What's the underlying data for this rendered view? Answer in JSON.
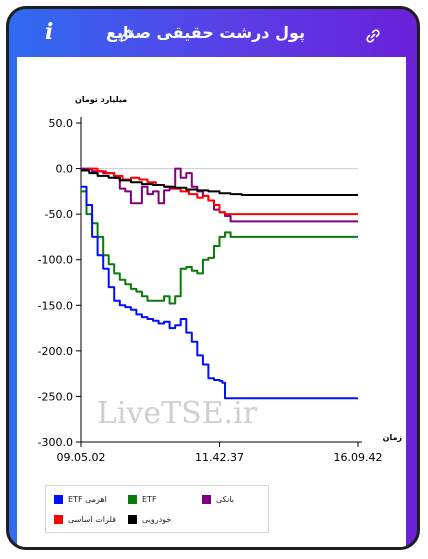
{
  "header": {
    "title": "پول درشت حقیقی صنایع",
    "info_glyph": "i"
  },
  "watermark": "LiveTSE.ir",
  "chart_data": {
    "type": "line",
    "ylabel": "میلیارد تومان",
    "xlabel": "زمان",
    "ylim": [
      -300,
      50
    ],
    "yticks": [
      "50.0",
      "0.0",
      "-50.0",
      "-100.0",
      "-150.0",
      "-200.0",
      "-250.0",
      "-300.0"
    ],
    "xtick_labels": [
      "09.05.02",
      "11.42.37",
      "16.09.42"
    ],
    "x_axis_note": "time of day; x values as fraction of the session from 09.05.02 (0) to 16.09.42 (1)",
    "zero_line": true,
    "grid": false,
    "legend_position": "bottom-left",
    "series": [
      {
        "name": "ETF اهرمی",
        "color": "#0010ff",
        "points": [
          [
            0,
            -20
          ],
          [
            0.02,
            -40
          ],
          [
            0.04,
            -75
          ],
          [
            0.06,
            -95
          ],
          [
            0.08,
            -110
          ],
          [
            0.1,
            -130
          ],
          [
            0.12,
            -145
          ],
          [
            0.14,
            -150
          ],
          [
            0.16,
            -152
          ],
          [
            0.18,
            -155
          ],
          [
            0.2,
            -160
          ],
          [
            0.22,
            -163
          ],
          [
            0.24,
            -165
          ],
          [
            0.26,
            -167
          ],
          [
            0.28,
            -170
          ],
          [
            0.3,
            -168
          ],
          [
            0.32,
            -175
          ],
          [
            0.34,
            -172
          ],
          [
            0.36,
            -165
          ],
          [
            0.38,
            -180
          ],
          [
            0.4,
            -190
          ],
          [
            0.42,
            -205
          ],
          [
            0.44,
            -215
          ],
          [
            0.46,
            -230
          ],
          [
            0.48,
            -232
          ],
          [
            0.5,
            -233
          ],
          [
            0.51,
            -235
          ],
          [
            0.52,
            -252
          ],
          [
            1,
            -252
          ]
        ]
      },
      {
        "name": "ETF",
        "color": "#0a7a0a",
        "points": [
          [
            0,
            -25
          ],
          [
            0.02,
            -50
          ],
          [
            0.04,
            -60
          ],
          [
            0.06,
            -75
          ],
          [
            0.08,
            -95
          ],
          [
            0.1,
            -105
          ],
          [
            0.12,
            -115
          ],
          [
            0.14,
            -122
          ],
          [
            0.16,
            -127
          ],
          [
            0.18,
            -132
          ],
          [
            0.2,
            -135
          ],
          [
            0.22,
            -140
          ],
          [
            0.24,
            -145
          ],
          [
            0.26,
            -145
          ],
          [
            0.28,
            -145
          ],
          [
            0.3,
            -140
          ],
          [
            0.32,
            -148
          ],
          [
            0.34,
            -140
          ],
          [
            0.36,
            -110
          ],
          [
            0.38,
            -108
          ],
          [
            0.4,
            -112
          ],
          [
            0.42,
            -115
          ],
          [
            0.44,
            -100
          ],
          [
            0.46,
            -98
          ],
          [
            0.48,
            -85
          ],
          [
            0.5,
            -75
          ],
          [
            0.52,
            -70
          ],
          [
            0.54,
            -75
          ],
          [
            1,
            -75
          ]
        ]
      },
      {
        "name": "بانکی",
        "color": "#800080",
        "points": [
          [
            0,
            0
          ],
          [
            0.04,
            -3
          ],
          [
            0.08,
            -5
          ],
          [
            0.12,
            -10
          ],
          [
            0.14,
            -22
          ],
          [
            0.16,
            -25
          ],
          [
            0.18,
            -38
          ],
          [
            0.2,
            -38
          ],
          [
            0.22,
            -20
          ],
          [
            0.24,
            -28
          ],
          [
            0.26,
            -25
          ],
          [
            0.28,
            -38
          ],
          [
            0.3,
            -24
          ],
          [
            0.32,
            -22
          ],
          [
            0.34,
            0
          ],
          [
            0.36,
            -10
          ],
          [
            0.38,
            -5
          ],
          [
            0.4,
            -20
          ],
          [
            0.42,
            -25
          ],
          [
            0.44,
            -30
          ],
          [
            0.46,
            -35
          ],
          [
            0.48,
            -45
          ],
          [
            0.5,
            -48
          ],
          [
            0.52,
            -52
          ],
          [
            0.54,
            -58
          ],
          [
            0.56,
            -58
          ],
          [
            1,
            -58
          ]
        ]
      },
      {
        "name": "فلزات اساسی",
        "color": "#ff0000",
        "points": [
          [
            0,
            -2
          ],
          [
            0.03,
            0
          ],
          [
            0.06,
            -3
          ],
          [
            0.09,
            -5
          ],
          [
            0.12,
            -8
          ],
          [
            0.15,
            -12
          ],
          [
            0.18,
            -10
          ],
          [
            0.21,
            -12
          ],
          [
            0.24,
            -15
          ],
          [
            0.27,
            -18
          ],
          [
            0.3,
            -20
          ],
          [
            0.33,
            -22
          ],
          [
            0.36,
            -25
          ],
          [
            0.39,
            -28
          ],
          [
            0.42,
            -32
          ],
          [
            0.44,
            -30
          ],
          [
            0.46,
            -35
          ],
          [
            0.48,
            -40
          ],
          [
            0.5,
            -48
          ],
          [
            0.52,
            -50
          ],
          [
            0.54,
            -50
          ],
          [
            1,
            -50
          ]
        ]
      },
      {
        "name": "خودرویی",
        "color": "#000000",
        "points": [
          [
            0,
            -2
          ],
          [
            0.03,
            -5
          ],
          [
            0.06,
            -8
          ],
          [
            0.1,
            -10
          ],
          [
            0.14,
            -13
          ],
          [
            0.18,
            -15
          ],
          [
            0.22,
            -17
          ],
          [
            0.26,
            -18
          ],
          [
            0.3,
            -20
          ],
          [
            0.34,
            -21
          ],
          [
            0.38,
            -23
          ],
          [
            0.42,
            -24
          ],
          [
            0.46,
            -25
          ],
          [
            0.5,
            -27
          ],
          [
            0.54,
            -28
          ],
          [
            0.58,
            -29
          ],
          [
            1,
            -29
          ]
        ]
      }
    ]
  }
}
